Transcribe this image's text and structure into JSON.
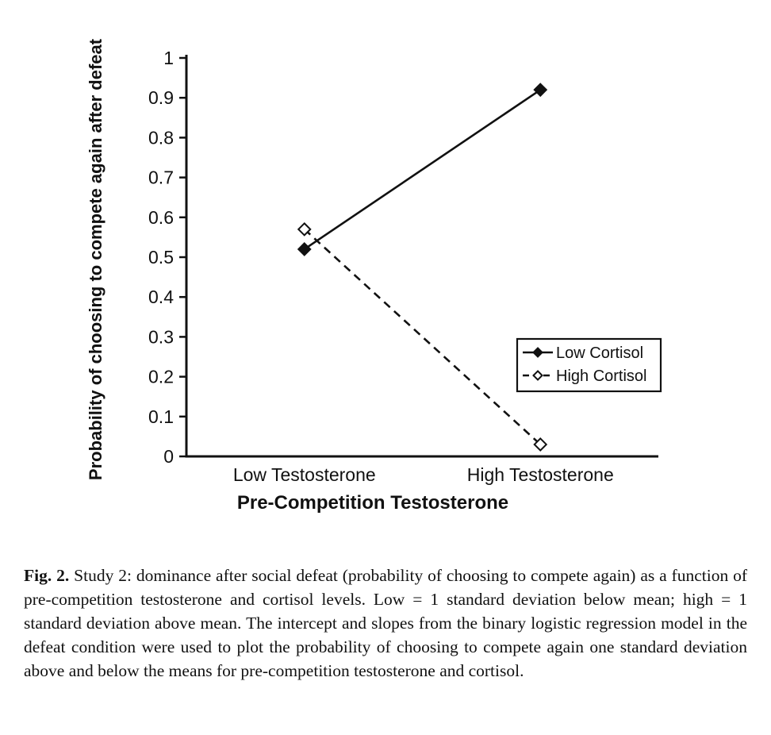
{
  "figure": {
    "caption_label": "Fig. 2.",
    "caption_text": "Study 2: dominance after social defeat (probability of choosing to compete again) as a function of pre-competition testosterone and cortisol levels. Low = 1 standard deviation below mean; high = 1 standard deviation above mean. The intercept and slopes from the binary logistic regression model in the defeat condition were used to plot the probability of choosing to compete again one standard deviation above and below the means for pre-competition testosterone and cortisol."
  },
  "chart_data": {
    "type": "line",
    "title": "",
    "xlabel": "Pre-Competition Testosterone",
    "ylabel": "Probability of choosing to compete again after defeat",
    "categories": [
      "Low Testosterone",
      "High Testosterone"
    ],
    "series": [
      {
        "name": "Low Cortisol",
        "values": [
          0.52,
          0.92
        ],
        "line_style": "solid",
        "marker": "filled-diamond"
      },
      {
        "name": "High Cortisol",
        "values": [
          0.57,
          0.03
        ],
        "line_style": "dashed",
        "marker": "open-diamond"
      }
    ],
    "ylim": [
      0,
      1
    ],
    "yticks": [
      0,
      0.1,
      0.2,
      0.3,
      0.4,
      0.5,
      0.6,
      0.7,
      0.8,
      0.9,
      1
    ],
    "grid": false,
    "legend_position": "right-middle",
    "legend_entries": [
      "Low Cortisol",
      "High Cortisol"
    ],
    "colors": {
      "line": "#111111",
      "text": "#111111",
      "background": "#ffffff"
    }
  }
}
